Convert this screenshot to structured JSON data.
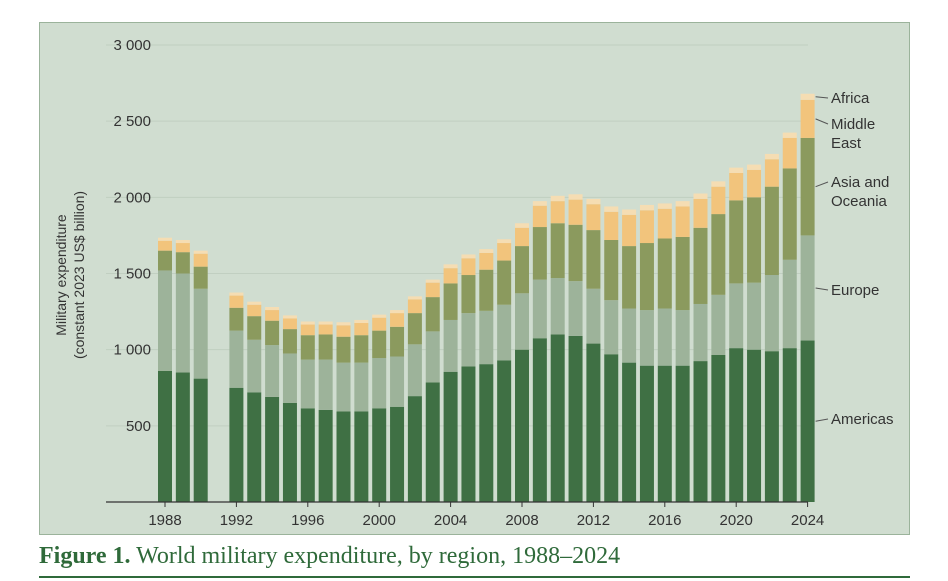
{
  "caption": {
    "label": "Figure 1.",
    "text": "World military expenditure, by region, 1988–2024"
  },
  "chart_data": {
    "type": "bar",
    "stacked": true,
    "title": "",
    "xlabel": "",
    "ylabel_line1": "Military expenditure",
    "ylabel_line2": "(constant 2023 US$ billion)",
    "ylim": [
      0,
      3000
    ],
    "yticks": [
      500,
      1000,
      1500,
      2000,
      2500,
      3000
    ],
    "ytick_labels": [
      "500",
      "1 000",
      "1 500",
      "2 000",
      "2 500",
      "3 000"
    ],
    "xtick_labels": [
      "1988",
      "1992",
      "1996",
      "2000",
      "2004",
      "2008",
      "2012",
      "2016",
      "2020",
      "2024"
    ],
    "grid": true,
    "legend_position": "right",
    "categories": [
      1988,
      1989,
      1990,
      1992,
      1993,
      1994,
      1995,
      1996,
      1997,
      1998,
      1999,
      2000,
      2001,
      2002,
      2003,
      2004,
      2005,
      2006,
      2007,
      2008,
      2009,
      2010,
      2011,
      2012,
      2013,
      2014,
      2015,
      2016,
      2017,
      2018,
      2019,
      2020,
      2021,
      2022,
      2023,
      2024
    ],
    "series": [
      {
        "name": "Americas",
        "color": "#3f7044",
        "values": [
          860,
          850,
          810,
          750,
          720,
          690,
          650,
          615,
          605,
          595,
          595,
          615,
          625,
          695,
          785,
          855,
          890,
          905,
          930,
          1000,
          1075,
          1100,
          1090,
          1040,
          970,
          915,
          895,
          895,
          895,
          925,
          965,
          1010,
          1000,
          990,
          1010,
          1060
        ]
      },
      {
        "name": "Europe",
        "color": "#9db39a",
        "values": [
          660,
          650,
          590,
          375,
          345,
          340,
          325,
          320,
          330,
          320,
          320,
          330,
          330,
          340,
          335,
          340,
          350,
          350,
          365,
          370,
          385,
          370,
          360,
          360,
          355,
          355,
          365,
          375,
          365,
          375,
          395,
          425,
          440,
          500,
          580,
          690
        ]
      },
      {
        "name": "Asia and Oceania",
        "color": "#8b9a5e",
        "values": [
          130,
          140,
          145,
          150,
          155,
          160,
          160,
          160,
          165,
          170,
          180,
          180,
          195,
          205,
          225,
          240,
          250,
          270,
          290,
          310,
          345,
          360,
          370,
          385,
          395,
          410,
          440,
          460,
          480,
          500,
          530,
          545,
          560,
          580,
          600,
          640
        ]
      },
      {
        "name": "Middle East",
        "color": "#f2c47c",
        "values": [
          65,
          60,
          85,
          80,
          75,
          70,
          70,
          70,
          65,
          75,
          80,
          85,
          90,
          90,
          95,
          100,
          110,
          110,
          115,
          120,
          140,
          145,
          165,
          170,
          185,
          205,
          215,
          195,
          200,
          190,
          180,
          180,
          180,
          180,
          200,
          250
        ]
      },
      {
        "name": "Africa",
        "color": "#f5ddb3",
        "values": [
          20,
          20,
          20,
          20,
          20,
          20,
          20,
          20,
          20,
          20,
          20,
          20,
          20,
          20,
          20,
          25,
          25,
          25,
          25,
          30,
          30,
          35,
          35,
          35,
          35,
          35,
          35,
          35,
          35,
          35,
          35,
          35,
          35,
          35,
          35,
          40
        ]
      }
    ],
    "legend_entries": [
      {
        "series": "Africa",
        "lines": [
          "Africa"
        ]
      },
      {
        "series": "Middle East",
        "lines": [
          "Middle",
          "East"
        ]
      },
      {
        "series": "Asia and Oceania",
        "lines": [
          "Asia and",
          "Oceania"
        ]
      },
      {
        "series": "Europe",
        "lines": [
          "Europe"
        ]
      },
      {
        "series": "Americas",
        "lines": [
          "Americas"
        ]
      }
    ],
    "colors": {
      "background": "#d0ddd0",
      "gridline": "#c1cfc1",
      "axis": "#333333",
      "caption": "#2f6a3a"
    }
  }
}
